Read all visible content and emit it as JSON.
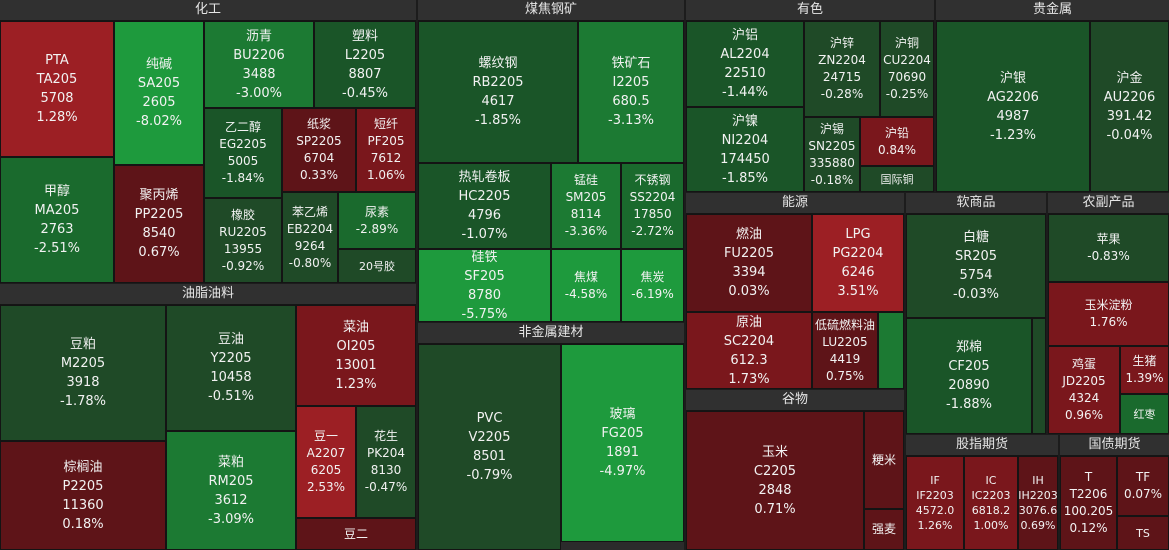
{
  "sectors": {
    "chemicals": "化工",
    "coal_steel": "煤焦钢矿",
    "nonferrous": "有色",
    "precious": "贵金属",
    "oils": "油脂油料",
    "nonmetal": "非金属建材",
    "energy": "能源",
    "softs": "软商品",
    "agri_products": "农副产品",
    "grains": "谷物",
    "index_futures": "股指期货",
    "bond_futures": "国债期货"
  },
  "tiles": {
    "pta": {
      "name": "PTA",
      "code": "TA205",
      "price": "5708",
      "change": "1.28%"
    },
    "soda_ash": {
      "name": "纯碱",
      "code": "SA205",
      "price": "2605",
      "change": "-8.02%"
    },
    "bitumen": {
      "name": "沥青",
      "code": "BU2206",
      "price": "3488",
      "change": "-3.00%"
    },
    "plastic": {
      "name": "塑料",
      "code": "L2205",
      "price": "8807",
      "change": "-0.45%"
    },
    "meg": {
      "name": "乙二醇",
      "code": "EG2205",
      "price": "5005",
      "change": "-1.84%"
    },
    "pulp": {
      "name": "纸浆",
      "code": "SP2205",
      "price": "6704",
      "change": "0.33%"
    },
    "psf": {
      "name": "短纤",
      "code": "PF205",
      "price": "7612",
      "change": "1.06%"
    },
    "methanol": {
      "name": "甲醇",
      "code": "MA205",
      "price": "2763",
      "change": "-2.51%"
    },
    "pp": {
      "name": "聚丙烯",
      "code": "PP2205",
      "price": "8540",
      "change": "0.67%"
    },
    "rubber": {
      "name": "橡胶",
      "code": "RU2205",
      "price": "13955",
      "change": "-0.92%"
    },
    "styrene": {
      "name": "苯乙烯",
      "code": "EB2204",
      "price": "9264",
      "change": "-0.80%"
    },
    "urea": {
      "name": "尿素",
      "change": "-2.89%"
    },
    "rubber20": {
      "name": "20号胶"
    },
    "rebar": {
      "name": "螺纹钢",
      "code": "RB2205",
      "price": "4617",
      "change": "-1.85%"
    },
    "iron_ore": {
      "name": "铁矿石",
      "code": "I2205",
      "price": "680.5",
      "change": "-3.13%"
    },
    "hot_coil": {
      "name": "热轧卷板",
      "code": "HC2205",
      "price": "4796",
      "change": "-1.07%"
    },
    "silicomanganese": {
      "name": "锰硅",
      "code": "SM205",
      "price": "8114",
      "change": "-3.36%"
    },
    "stainless": {
      "name": "不锈钢",
      "code": "SS2204",
      "price": "17850",
      "change": "-2.72%"
    },
    "ferrosilicon": {
      "name": "硅铁",
      "code": "SF205",
      "price": "8780",
      "change": "-5.75%"
    },
    "coke": {
      "name": "焦煤",
      "change": "-4.58%"
    },
    "coking_coal": {
      "name": "焦炭",
      "change": "-6.19%"
    },
    "aluminum": {
      "name": "沪铝",
      "code": "AL2204",
      "price": "22510",
      "change": "-1.44%"
    },
    "zinc": {
      "name": "沪锌",
      "code": "ZN2204",
      "price": "24715",
      "change": "-0.28%"
    },
    "copper": {
      "name": "沪铜",
      "code": "CU2204",
      "price": "70690",
      "change": "-0.25%"
    },
    "nickel": {
      "name": "沪镍",
      "code": "NI2204",
      "price": "174450",
      "change": "-1.85%"
    },
    "tin": {
      "name": "沪锡",
      "code": "SN2205",
      "price": "335880",
      "change": "-0.18%"
    },
    "lead": {
      "name": "沪铅",
      "change": "0.84%"
    },
    "intl_copper": {
      "name": "国际铜"
    },
    "silver": {
      "name": "沪银",
      "code": "AG2206",
      "price": "4987",
      "change": "-1.23%"
    },
    "gold": {
      "name": "沪金",
      "code": "AU2206",
      "price": "391.42",
      "change": "-0.04%"
    },
    "soymeal": {
      "name": "豆粕",
      "code": "M2205",
      "price": "3918",
      "change": "-1.78%"
    },
    "soyoil": {
      "name": "豆油",
      "code": "Y2205",
      "price": "10458",
      "change": "-0.51%"
    },
    "rapeseed_oil": {
      "name": "菜油",
      "code": "OI205",
      "price": "13001",
      "change": "1.23%"
    },
    "palm_oil": {
      "name": "棕榈油",
      "code": "P2205",
      "price": "11360",
      "change": "0.18%"
    },
    "rapeseed_meal": {
      "name": "菜粕",
      "code": "RM205",
      "price": "3612",
      "change": "-3.09%"
    },
    "soybean1": {
      "name": "豆一",
      "code": "A2207",
      "price": "6205",
      "change": "2.53%"
    },
    "peanut": {
      "name": "花生",
      "code": "PK204",
      "price": "8130",
      "change": "-0.47%"
    },
    "soybean2": {
      "name": "豆二"
    },
    "pvc": {
      "name": "PVC",
      "code": "V2205",
      "price": "8501",
      "change": "-0.79%"
    },
    "glass": {
      "name": "玻璃",
      "code": "FG205",
      "price": "1891",
      "change": "-4.97%"
    },
    "fuel_oil": {
      "name": "燃油",
      "code": "FU2205",
      "price": "3394",
      "change": "0.03%"
    },
    "lpg": {
      "name": "LPG",
      "code": "PG2204",
      "price": "6246",
      "change": "3.51%"
    },
    "crude": {
      "name": "原油",
      "code": "SC2204",
      "price": "612.3",
      "change": "1.73%"
    },
    "lsfo": {
      "name": "低硫燃料油",
      "code": "LU2205",
      "price": "4419",
      "change": "0.75%"
    },
    "corn": {
      "name": "玉米",
      "code": "C2205",
      "price": "2848",
      "change": "0.71%"
    },
    "japonica": {
      "name": "粳米"
    },
    "strong_wheat": {
      "name": "强麦"
    },
    "sugar": {
      "name": "白糖",
      "code": "SR205",
      "price": "5754",
      "change": "-0.03%"
    },
    "cotton": {
      "name": "郑棉",
      "code": "CF205",
      "price": "20890",
      "change": "-1.88%"
    },
    "apple": {
      "name": "苹果",
      "change": "-0.83%"
    },
    "corn_starch": {
      "name": "玉米淀粉",
      "change": "1.76%"
    },
    "egg": {
      "name": "鸡蛋",
      "code": "JD2205",
      "price": "4324",
      "change": "0.96%"
    },
    "hog": {
      "name": "生猪",
      "change": "1.39%"
    },
    "red_date": {
      "name": "红枣"
    },
    "if": {
      "name": "IF",
      "code": "IF2203",
      "price": "4572.0",
      "change": "1.26%"
    },
    "ic": {
      "name": "IC",
      "code": "IC2203",
      "price": "6818.2",
      "change": "1.00%"
    },
    "ih": {
      "name": "IH",
      "code": "IH2203",
      "price": "3076.6",
      "change": "0.69%"
    },
    "t": {
      "name": "T",
      "code": "T2206",
      "price": "100.205",
      "change": "0.12%"
    },
    "tf": {
      "name": "TF",
      "change": "0.07%"
    },
    "ts": {
      "name": "TS"
    }
  }
}
